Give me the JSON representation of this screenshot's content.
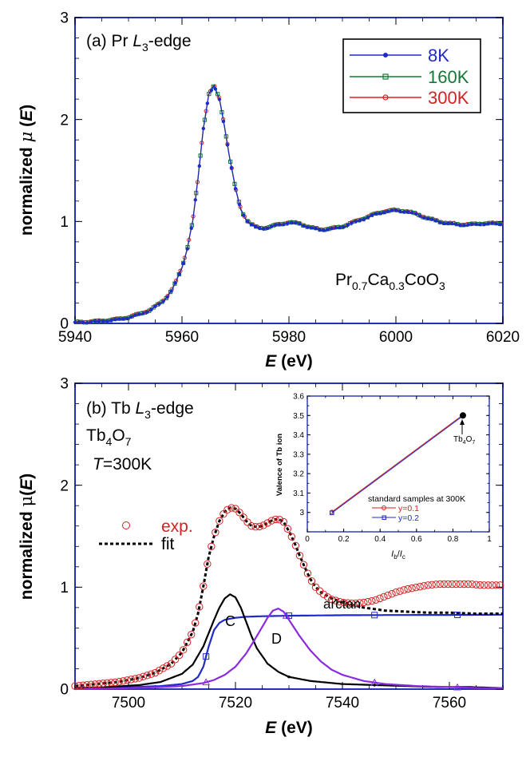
{
  "chart_data": [
    {
      "id": "a",
      "type": "line",
      "panel_label": "(a) Pr",
      "edge_symbol": "L",
      "edge_sub": "3",
      "edge_suffix": "-edge",
      "xlabel": "E",
      "xunit": "(eV)",
      "ylabel": "normalized",
      "ymu": "μ",
      "yE": "E",
      "xlim": [
        5940,
        6020
      ],
      "ylim": [
        0,
        3
      ],
      "xticks": [
        5940,
        5960,
        5980,
        6000,
        6020
      ],
      "xtick_labels": [
        "5940",
        "5960",
        "5980",
        "6000",
        "6020"
      ],
      "yticks": [
        0,
        1,
        2,
        3
      ],
      "ytick_labels": [
        "0",
        "1",
        "2",
        "3"
      ],
      "sample": {
        "el1": "Pr",
        "s1": "0.7",
        "el2": "Ca",
        "s2": "0.3",
        "el3": "CoO",
        "s3": "3"
      },
      "legend": [
        "8K",
        "160K",
        "300K"
      ],
      "series": [
        {
          "name": "8K",
          "color": "#1f2ac8",
          "marker": "filled-circle",
          "x": [
            5940,
            5944,
            5948,
            5950,
            5952,
            5954,
            5956,
            5957,
            5958,
            5959,
            5960,
            5961,
            5962,
            5963,
            5964,
            5965,
            5966,
            5967,
            5968,
            5969,
            5970,
            5971,
            5972,
            5973,
            5974,
            5975,
            5976,
            5978,
            5980,
            5982,
            5984,
            5986,
            5988,
            5990,
            5992,
            5994,
            5996,
            5998,
            6000,
            6002,
            6004,
            6006,
            6008,
            6010,
            6012,
            6014,
            6016,
            6018,
            6020
          ],
          "y": [
            0.01,
            0.02,
            0.04,
            0.06,
            0.09,
            0.13,
            0.2,
            0.25,
            0.32,
            0.42,
            0.55,
            0.74,
            1.0,
            1.42,
            1.92,
            2.25,
            2.33,
            2.2,
            1.92,
            1.6,
            1.32,
            1.12,
            1.02,
            0.97,
            0.94,
            0.935,
            0.94,
            0.97,
            0.99,
            0.98,
            0.94,
            0.92,
            0.93,
            0.95,
            0.99,
            1.03,
            1.07,
            1.1,
            1.11,
            1.1,
            1.07,
            1.03,
            1.0,
            0.98,
            0.97,
            0.97,
            0.98,
            0.98,
            0.98
          ]
        },
        {
          "name": "160K",
          "color": "#137a33",
          "marker": "open-square"
        },
        {
          "name": "300K",
          "color": "#d42222",
          "marker": "open-circle"
        }
      ]
    },
    {
      "id": "b",
      "type": "line",
      "panel_label": "(b) Tb",
      "edge_symbol": "L",
      "edge_sub": "3",
      "edge_suffix": "-edge",
      "compound": {
        "el1": "Tb",
        "s1": "4",
        "el2": "O",
        "s2": "7"
      },
      "temperature": {
        "symbol": "T",
        "value": "=300K"
      },
      "xlabel": "E",
      "xunit": "(eV)",
      "ylabel": "normalized",
      "ymu": "μ",
      "yE": "E",
      "xlim": [
        7490,
        7570
      ],
      "ylim": [
        0,
        3
      ],
      "xticks": [
        7500,
        7520,
        7540,
        7560
      ],
      "xtick_labels": [
        "7500",
        "7520",
        "7540",
        "7560"
      ],
      "yticks": [
        0,
        1,
        2,
        3
      ],
      "ytick_labels": [
        "0",
        "1",
        "2",
        "3"
      ],
      "legend": [
        {
          "label": "exp.",
          "color": "#d42222",
          "style": "open-circle"
        },
        {
          "label": "fit",
          "color": "#000000",
          "style": "dashed"
        }
      ],
      "annotations": [
        "C",
        "D",
        "arctan"
      ],
      "series": [
        {
          "name": "exp.",
          "color": "#d42222",
          "marker": "open-circle",
          "x": [
            7490,
            7494,
            7498,
            7502,
            7505,
            7508,
            7510,
            7512,
            7513,
            7514,
            7515,
            7516,
            7517,
            7518,
            7519,
            7520,
            7521,
            7522,
            7523,
            7524,
            7525,
            7526,
            7527,
            7528,
            7529,
            7530,
            7531,
            7532,
            7533,
            7534,
            7535,
            7536,
            7537,
            7538,
            7540,
            7542,
            7544,
            7546,
            7548,
            7550,
            7552,
            7554,
            7556,
            7558,
            7560,
            7562,
            7564,
            7566,
            7568,
            7570
          ],
          "y": [
            0.03,
            0.05,
            0.07,
            0.11,
            0.16,
            0.25,
            0.36,
            0.56,
            0.74,
            1.01,
            1.3,
            1.5,
            1.65,
            1.74,
            1.78,
            1.77,
            1.72,
            1.65,
            1.6,
            1.59,
            1.6,
            1.63,
            1.66,
            1.67,
            1.64,
            1.55,
            1.44,
            1.31,
            1.19,
            1.08,
            1.0,
            0.95,
            0.91,
            0.88,
            0.85,
            0.84,
            0.85,
            0.87,
            0.91,
            0.95,
            0.98,
            1.0,
            1.02,
            1.03,
            1.03,
            1.03,
            1.03,
            1.02,
            1.02,
            1.02
          ]
        },
        {
          "name": "fit",
          "color": "#000000",
          "style": "dashed",
          "x": [
            7490,
            7494,
            7498,
            7502,
            7505,
            7508,
            7510,
            7512,
            7513,
            7514,
            7515,
            7516,
            7517,
            7518,
            7519,
            7520,
            7521,
            7522,
            7523,
            7524,
            7525,
            7526,
            7527,
            7528,
            7529,
            7530,
            7531,
            7532,
            7533,
            7534,
            7535,
            7536,
            7538,
            7540,
            7544,
            7548,
            7552,
            7556,
            7560,
            7565,
            7570
          ],
          "y": [
            0.03,
            0.05,
            0.07,
            0.11,
            0.16,
            0.25,
            0.36,
            0.56,
            0.74,
            1.01,
            1.3,
            1.5,
            1.65,
            1.74,
            1.78,
            1.77,
            1.72,
            1.65,
            1.6,
            1.59,
            1.6,
            1.63,
            1.66,
            1.67,
            1.64,
            1.55,
            1.44,
            1.31,
            1.19,
            1.08,
            1.0,
            0.95,
            0.89,
            0.85,
            0.8,
            0.77,
            0.76,
            0.75,
            0.75,
            0.74,
            0.74
          ]
        },
        {
          "name": "C",
          "color": "#000000",
          "style": "solid",
          "x": [
            7490,
            7496,
            7502,
            7506,
            7510,
            7512,
            7514,
            7515,
            7516,
            7517,
            7518,
            7519,
            7520,
            7521,
            7522,
            7523,
            7524,
            7526,
            7528,
            7530,
            7534,
            7540,
            7546,
            7552,
            7558,
            7564,
            7570
          ],
          "y": [
            0.01,
            0.02,
            0.04,
            0.07,
            0.15,
            0.24,
            0.42,
            0.55,
            0.68,
            0.8,
            0.89,
            0.93,
            0.9,
            0.8,
            0.66,
            0.52,
            0.4,
            0.25,
            0.17,
            0.12,
            0.08,
            0.05,
            0.04,
            0.03,
            0.02,
            0.02,
            0.01
          ]
        },
        {
          "name": "D",
          "color": "#8a2be2",
          "style": "solid",
          "marker": "open-triangle",
          "x": [
            7490,
            7500,
            7506,
            7510,
            7514,
            7516,
            7518,
            7520,
            7522,
            7524,
            7526,
            7527,
            7528,
            7529,
            7530,
            7532,
            7534,
            7536,
            7538,
            7540,
            7544,
            7548,
            7554,
            7560,
            7566,
            7570
          ],
          "y": [
            0.0,
            0.01,
            0.02,
            0.03,
            0.06,
            0.09,
            0.14,
            0.22,
            0.35,
            0.52,
            0.7,
            0.77,
            0.79,
            0.76,
            0.68,
            0.52,
            0.38,
            0.27,
            0.19,
            0.14,
            0.08,
            0.05,
            0.03,
            0.02,
            0.01,
            0.01
          ]
        },
        {
          "name": "arctan",
          "color": "#1f2ac8",
          "style": "solid",
          "marker": "open-square",
          "x": [
            7490,
            7500,
            7506,
            7510,
            7512,
            7513,
            7514,
            7515,
            7516,
            7517,
            7518,
            7520,
            7522,
            7525,
            7530,
            7540,
            7550,
            7560,
            7570
          ],
          "y": [
            0.01,
            0.02,
            0.03,
            0.05,
            0.08,
            0.12,
            0.22,
            0.42,
            0.58,
            0.65,
            0.68,
            0.7,
            0.71,
            0.715,
            0.72,
            0.725,
            0.727,
            0.728,
            0.73
          ]
        }
      ]
    },
    {
      "id": "inset",
      "type": "line",
      "xlabel_sub1": "b",
      "xlabel_sub2": "c",
      "xlabel_sym1": "I",
      "xlabel_sym2": "I",
      "ylabel": "Valence of Tb ion",
      "xlim": [
        0,
        1
      ],
      "ylim": [
        2.9,
        3.6
      ],
      "xticks": [
        0,
        0.2,
        0.4,
        0.6,
        0.8,
        1
      ],
      "xtick_labels": [
        "0",
        "0.2",
        "0.4",
        "0.6",
        "0.8",
        "1"
      ],
      "yticks": [
        3,
        3.1,
        3.2,
        3.3,
        3.4,
        3.5,
        3.6
      ],
      "ytick_labels": [
        "3",
        "3.1",
        "3.2",
        "3.3",
        "3.4",
        "3.5",
        "3.6"
      ],
      "legend_title": "standard samples at 300K",
      "annotation": {
        "el1": "Tb",
        "s1": "4",
        "el2": "O",
        "s2": "7",
        "x": 0.855,
        "y": 3.5
      },
      "series": [
        {
          "name": "y=0.1",
          "color": "#d42222",
          "marker": "open-circle",
          "x": [
            0.135,
            0.855
          ],
          "y": [
            3.0,
            3.5
          ]
        },
        {
          "name": "y=0.2",
          "color": "#1f2ac8",
          "marker": "open-square",
          "x": [
            0.135,
            0.855
          ],
          "y": [
            3.0,
            3.5
          ]
        }
      ]
    }
  ]
}
